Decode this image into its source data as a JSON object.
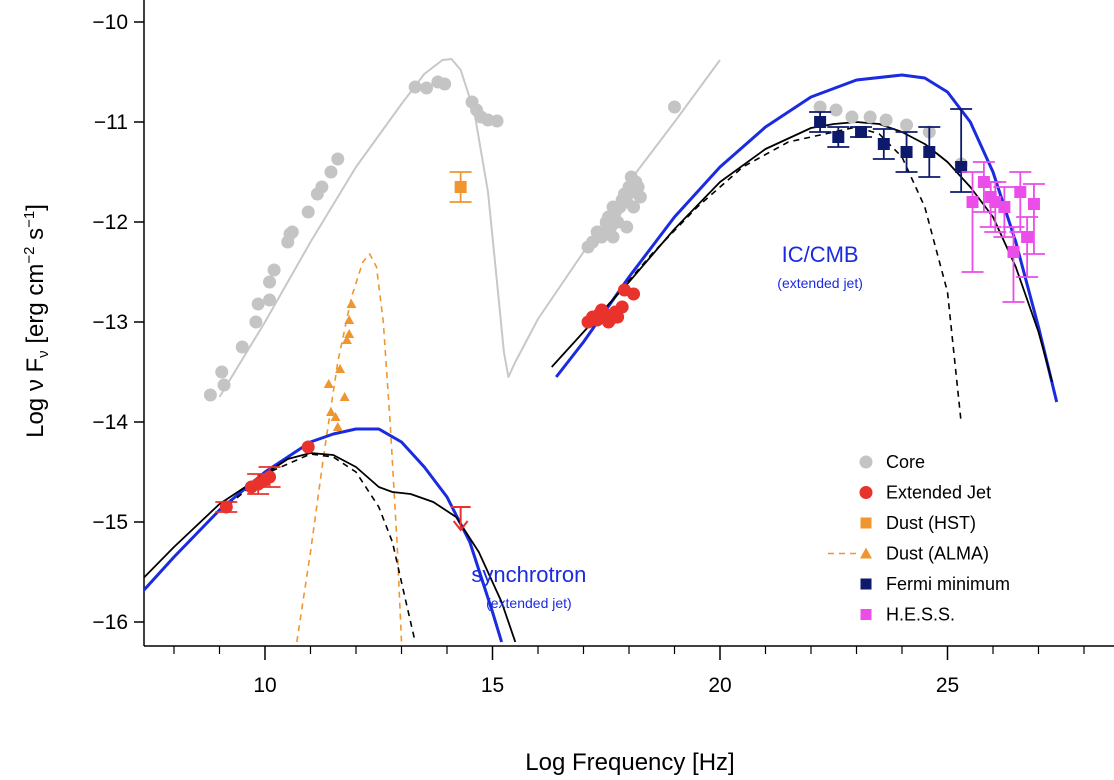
{
  "chart_data": {
    "type": "scatter",
    "xlabel": "Log Frequency [Hz]",
    "ylabel": {
      "pre": "Log ν F",
      "sub": "ν",
      "mid": " [erg  cm",
      "sup1": "−2",
      "mid2": "  s",
      "sup2": "−1",
      "post": "]"
    },
    "xlim": [
      7.2,
      28.8
    ],
    "ylim": [
      -16.25,
      -9.8
    ],
    "x_ticks": [
      10,
      15,
      20,
      25
    ],
    "x_minor_ticks": [
      8,
      9,
      11,
      12,
      13,
      14,
      16,
      17,
      18,
      19,
      21,
      22,
      23,
      24,
      26,
      27,
      28
    ],
    "y_ticks": [
      -16,
      -15,
      -14,
      -13,
      -12,
      -11,
      -10
    ],
    "y_tick_labels": [
      "−16",
      "−15",
      "−14",
      "−13",
      "−12",
      "−11",
      "−10"
    ],
    "x_tick_labels": [
      "10",
      "15",
      "20",
      "25"
    ],
    "colors": {
      "core": "#c4c4c4",
      "jet": "#e8322b",
      "dust": "#f0962e",
      "fermi": "#0d1a6b",
      "hess": "#ea4de8",
      "model_blue": "#1a2be0",
      "model_black": "#000000",
      "core_model": "#c8c8c8"
    },
    "annotations": [
      {
        "name": "annotation-ic-cmb",
        "main": "IC/CMB",
        "sub": "(extended jet)",
        "x": 22.2,
        "y": -12.4,
        "color": "#1a2be0"
      },
      {
        "name": "annotation-synchrotron",
        "main": "synchrotron",
        "sub": "(extended jet)",
        "x": 15.8,
        "y": -15.6,
        "color": "#1a2be0"
      }
    ],
    "legend": {
      "placement": "bottom-right",
      "entries": [
        {
          "label": "Core",
          "marker": "circle",
          "color": "#c4c4c4"
        },
        {
          "label": "Extended Jet",
          "marker": "circle",
          "color": "#e8322b"
        },
        {
          "label": "Dust (HST)",
          "marker": "square",
          "color": "#f0962e"
        },
        {
          "label": "Dust (ALMA)",
          "marker": "triangle-dashed",
          "color": "#f0962e"
        },
        {
          "label": "Fermi minimum",
          "marker": "square",
          "color": "#0d1a6b"
        },
        {
          "label": "H.E.S.S.",
          "marker": "square",
          "color": "#ea4de8"
        }
      ]
    },
    "series": [
      {
        "name": "Core",
        "marker": "circle",
        "points": [
          [
            8.8,
            -13.73
          ],
          [
            9.05,
            -13.5
          ],
          [
            9.1,
            -13.63
          ],
          [
            9.5,
            -13.25
          ],
          [
            9.8,
            -13.0
          ],
          [
            9.85,
            -12.82
          ],
          [
            10.1,
            -12.78
          ],
          [
            10.1,
            -12.6
          ],
          [
            10.2,
            -12.48
          ],
          [
            10.5,
            -12.2
          ],
          [
            10.55,
            -12.12
          ],
          [
            10.6,
            -12.1
          ],
          [
            10.95,
            -11.9
          ],
          [
            11.15,
            -11.72
          ],
          [
            11.25,
            -11.65
          ],
          [
            11.45,
            -11.5
          ],
          [
            11.6,
            -11.37
          ],
          [
            13.3,
            -10.65
          ],
          [
            13.55,
            -10.66
          ],
          [
            13.8,
            -10.6
          ],
          [
            13.95,
            -10.62
          ],
          [
            14.55,
            -10.8
          ],
          [
            14.65,
            -10.88
          ],
          [
            14.75,
            -10.95
          ],
          [
            14.9,
            -10.98
          ],
          [
            15.1,
            -10.99
          ],
          [
            19.0,
            -10.85
          ],
          [
            17.1,
            -12.25
          ],
          [
            17.3,
            -12.1
          ],
          [
            17.4,
            -12.15
          ],
          [
            17.5,
            -12.0
          ],
          [
            17.55,
            -11.95
          ],
          [
            17.6,
            -12.05
          ],
          [
            17.65,
            -12.15
          ],
          [
            17.7,
            -11.9
          ],
          [
            17.75,
            -12.0
          ],
          [
            17.8,
            -11.85
          ],
          [
            17.85,
            -11.78
          ],
          [
            17.9,
            -11.72
          ],
          [
            17.95,
            -11.8
          ],
          [
            18.0,
            -11.65
          ],
          [
            18.05,
            -11.55
          ],
          [
            18.1,
            -11.7
          ],
          [
            18.15,
            -11.6
          ],
          [
            18.2,
            -11.65
          ],
          [
            18.25,
            -11.75
          ],
          [
            17.95,
            -12.05
          ],
          [
            18.1,
            -11.85
          ],
          [
            17.65,
            -11.85
          ],
          [
            17.5,
            -12.1
          ],
          [
            17.2,
            -12.2
          ],
          [
            22.2,
            -10.85
          ],
          [
            22.55,
            -10.88
          ],
          [
            22.9,
            -10.95
          ],
          [
            23.3,
            -10.95
          ],
          [
            23.65,
            -10.98
          ],
          [
            24.1,
            -11.03
          ],
          [
            24.6,
            -11.1
          ],
          [
            25.3,
            -11.42
          ]
        ]
      },
      {
        "name": "Extended Jet",
        "marker": "circle",
        "points": [
          [
            9.15,
            -14.85
          ],
          [
            9.7,
            -14.65
          ],
          [
            9.85,
            -14.62
          ],
          [
            10.0,
            -14.58
          ],
          [
            10.1,
            -14.55
          ],
          [
            10.95,
            -14.25
          ],
          [
            17.1,
            -13.0
          ],
          [
            17.2,
            -12.95
          ],
          [
            17.3,
            -12.98
          ],
          [
            17.4,
            -12.88
          ],
          [
            17.5,
            -12.93
          ],
          [
            17.6,
            -12.97
          ],
          [
            17.7,
            -12.9
          ],
          [
            17.85,
            -12.85
          ],
          [
            17.9,
            -12.68
          ],
          [
            18.1,
            -12.72
          ],
          [
            17.75,
            -12.95
          ],
          [
            17.55,
            -13.0
          ],
          [
            17.35,
            -12.92
          ]
        ],
        "error_points": [
          [
            9.15,
            -14.85,
            0.05,
            0.05
          ],
          [
            9.85,
            -14.62,
            0.1,
            0.1
          ],
          [
            10.1,
            -14.55,
            0.1,
            0.1
          ]
        ],
        "upper_limit": [
          14.3,
          -14.95
        ]
      },
      {
        "name": "Dust (HST)",
        "marker": "square",
        "points": [
          [
            14.3,
            -11.65
          ]
        ],
        "error_points": [
          [
            14.3,
            -11.65,
            0.15,
            0.15
          ]
        ]
      },
      {
        "name": "Dust (ALMA)",
        "marker": "triangle",
        "points": [
          [
            11.4,
            -13.62
          ],
          [
            11.45,
            -13.9
          ],
          [
            11.55,
            -13.95
          ],
          [
            11.6,
            -14.05
          ],
          [
            11.65,
            -13.47
          ],
          [
            11.75,
            -13.75
          ],
          [
            11.8,
            -13.18
          ],
          [
            11.85,
            -13.12
          ],
          [
            11.85,
            -12.98
          ],
          [
            11.9,
            -12.82
          ]
        ]
      },
      {
        "name": "Fermi minimum",
        "marker": "square",
        "points": [
          [
            22.2,
            -11.0
          ],
          [
            22.6,
            -11.15
          ],
          [
            23.1,
            -11.1
          ],
          [
            23.6,
            -11.22
          ],
          [
            24.1,
            -11.3
          ],
          [
            24.6,
            -11.3
          ],
          [
            25.3,
            -11.45
          ]
        ],
        "error_points": [
          [
            22.2,
            -11.0,
            0.1,
            0.1
          ],
          [
            22.6,
            -11.15,
            0.1,
            0.1
          ],
          [
            23.1,
            -11.1,
            0.05,
            0.05
          ],
          [
            23.6,
            -11.22,
            0.15,
            0.15
          ],
          [
            24.1,
            -11.3,
            0.2,
            0.2
          ],
          [
            24.6,
            -11.3,
            0.25,
            0.25
          ],
          [
            25.3,
            -11.45,
            0.25,
            0.58
          ]
        ]
      },
      {
        "name": "H.E.S.S.",
        "marker": "square",
        "points": [
          [
            25.55,
            -11.8
          ],
          [
            25.8,
            -11.6
          ],
          [
            25.95,
            -11.75
          ],
          [
            26.05,
            -11.8
          ],
          [
            26.25,
            -11.85
          ],
          [
            26.45,
            -12.3
          ],
          [
            26.6,
            -11.7
          ],
          [
            26.75,
            -12.15
          ],
          [
            26.9,
            -11.82
          ]
        ],
        "error_points": [
          [
            25.55,
            -11.8,
            0.7,
            0.3
          ],
          [
            25.8,
            -11.6,
            0.3,
            0.2
          ],
          [
            25.95,
            -11.75,
            0.3,
            0.15
          ],
          [
            26.05,
            -11.8,
            0.3,
            0.2
          ],
          [
            26.25,
            -11.85,
            0.3,
            0.2
          ],
          [
            26.45,
            -12.3,
            0.5,
            0.25
          ],
          [
            26.6,
            -11.7,
            0.4,
            0.2
          ],
          [
            26.75,
            -12.15,
            0.4,
            0.2
          ],
          [
            26.9,
            -11.82,
            0.5,
            0.2
          ]
        ]
      }
    ],
    "models": [
      {
        "name": "core-model",
        "color": "#c8c8c8",
        "style": "solid",
        "width": 2,
        "points": [
          [
            9.0,
            -13.75
          ],
          [
            10,
            -13.0
          ],
          [
            11,
            -12.2
          ],
          [
            12,
            -11.45
          ],
          [
            13,
            -10.82
          ],
          [
            13.5,
            -10.52
          ],
          [
            13.9,
            -10.38
          ],
          [
            14.1,
            -10.37
          ],
          [
            14.3,
            -10.48
          ],
          [
            14.6,
            -10.9
          ],
          [
            14.9,
            -11.7
          ],
          [
            15.1,
            -12.6
          ],
          [
            15.25,
            -13.3
          ],
          [
            15.35,
            -13.55
          ],
          [
            15.5,
            -13.4
          ],
          [
            16,
            -12.97
          ],
          [
            17,
            -12.3
          ],
          [
            18,
            -11.6
          ],
          [
            19,
            -11.0
          ],
          [
            20,
            -10.38
          ]
        ]
      },
      {
        "name": "dust-alma-model",
        "color": "#f0962e",
        "style": "dashed",
        "width": 1.6,
        "points": [
          [
            10.7,
            -16.2
          ],
          [
            11.0,
            -15.3
          ],
          [
            11.3,
            -14.3
          ],
          [
            11.6,
            -13.4
          ],
          [
            11.9,
            -12.75
          ],
          [
            12.15,
            -12.4
          ],
          [
            12.3,
            -12.32
          ],
          [
            12.45,
            -12.45
          ],
          [
            12.6,
            -13.0
          ],
          [
            12.75,
            -14.0
          ],
          [
            12.9,
            -15.2
          ],
          [
            13.0,
            -16.2
          ]
        ]
      },
      {
        "name": "sync-blue",
        "color": "#1a2be0",
        "style": "solid",
        "width": 3,
        "points": [
          [
            7.2,
            -15.75
          ],
          [
            8,
            -15.35
          ],
          [
            9,
            -14.88
          ],
          [
            10,
            -14.5
          ],
          [
            11,
            -14.2
          ],
          [
            11.5,
            -14.12
          ],
          [
            12,
            -14.07
          ],
          [
            12.5,
            -14.07
          ],
          [
            13,
            -14.2
          ],
          [
            13.5,
            -14.45
          ],
          [
            14,
            -14.75
          ],
          [
            14.5,
            -15.2
          ],
          [
            15,
            -15.9
          ],
          [
            15.2,
            -16.2
          ]
        ]
      },
      {
        "name": "sync-black",
        "color": "#000000",
        "style": "solid",
        "width": 1.8,
        "points": [
          [
            7.2,
            -15.62
          ],
          [
            8,
            -15.25
          ],
          [
            9,
            -14.82
          ],
          [
            10,
            -14.52
          ],
          [
            10.5,
            -14.37
          ],
          [
            11,
            -14.31
          ],
          [
            11.5,
            -14.33
          ],
          [
            12,
            -14.45
          ],
          [
            12.5,
            -14.65
          ],
          [
            12.8,
            -14.7
          ],
          [
            13.2,
            -14.72
          ],
          [
            13.7,
            -14.8
          ],
          [
            14.2,
            -14.95
          ],
          [
            14.7,
            -15.3
          ],
          [
            15.2,
            -15.8
          ],
          [
            15.5,
            -16.2
          ]
        ]
      },
      {
        "name": "sync-dashed",
        "color": "#000000",
        "style": "dashed",
        "width": 1.6,
        "points": [
          [
            9.2,
            -14.83
          ],
          [
            10,
            -14.52
          ],
          [
            11,
            -14.32
          ],
          [
            11.5,
            -14.35
          ],
          [
            12,
            -14.5
          ],
          [
            12.5,
            -14.85
          ],
          [
            12.8,
            -15.2
          ],
          [
            13.1,
            -15.8
          ],
          [
            13.3,
            -16.2
          ]
        ]
      },
      {
        "name": "ic-blue",
        "color": "#1a2be0",
        "style": "solid",
        "width": 3,
        "points": [
          [
            16.4,
            -13.55
          ],
          [
            17,
            -13.2
          ],
          [
            18,
            -12.55
          ],
          [
            19,
            -11.95
          ],
          [
            20,
            -11.45
          ],
          [
            21,
            -11.05
          ],
          [
            22,
            -10.75
          ],
          [
            23,
            -10.58
          ],
          [
            24,
            -10.53
          ],
          [
            24.5,
            -10.56
          ],
          [
            25,
            -10.7
          ],
          [
            25.5,
            -11.0
          ],
          [
            26,
            -11.5
          ],
          [
            26.5,
            -12.2
          ],
          [
            27,
            -13.05
          ],
          [
            27.4,
            -13.8
          ]
        ]
      },
      {
        "name": "ic-black",
        "color": "#000000",
        "style": "solid",
        "width": 1.8,
        "points": [
          [
            16.3,
            -13.45
          ],
          [
            17,
            -13.1
          ],
          [
            18,
            -12.6
          ],
          [
            19,
            -12.07
          ],
          [
            20,
            -11.6
          ],
          [
            21,
            -11.27
          ],
          [
            22,
            -11.06
          ],
          [
            22.5,
            -11.02
          ],
          [
            23,
            -11.0
          ],
          [
            23.5,
            -11.02
          ],
          [
            24,
            -11.1
          ],
          [
            24.5,
            -11.22
          ],
          [
            25,
            -11.4
          ],
          [
            25.5,
            -11.65
          ],
          [
            26,
            -11.95
          ],
          [
            26.5,
            -12.45
          ],
          [
            27,
            -13.1
          ],
          [
            27.3,
            -13.6
          ]
        ]
      },
      {
        "name": "ic-dashed",
        "color": "#000000",
        "style": "dashed",
        "width": 1.6,
        "points": [
          [
            17.5,
            -12.85
          ],
          [
            18.5,
            -12.32
          ],
          [
            19.5,
            -11.85
          ],
          [
            20.5,
            -11.45
          ],
          [
            21.5,
            -11.2
          ],
          [
            22.5,
            -11.1
          ],
          [
            23,
            -11.05
          ],
          [
            23.5,
            -11.12
          ],
          [
            24,
            -11.35
          ],
          [
            24.5,
            -11.85
          ],
          [
            25,
            -12.7
          ],
          [
            25.3,
            -14.0
          ]
        ]
      }
    ]
  }
}
